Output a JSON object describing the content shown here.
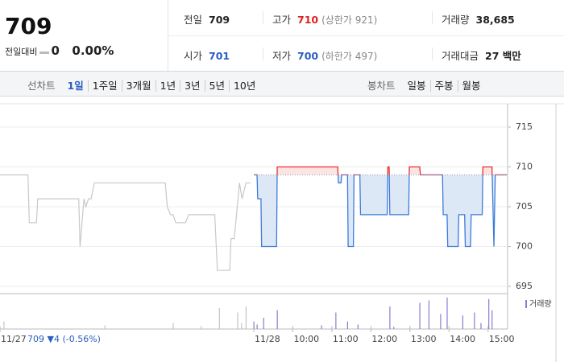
{
  "header": {
    "price": "709",
    "change_label": "전일대비",
    "change": "0",
    "change_pct": "0.00%",
    "info": [
      {
        "label": "전일",
        "value": "709"
      },
      {
        "label": "고가",
        "value": "710",
        "note": "(상한가 921)",
        "color": "#e02020"
      },
      {
        "label": "거래량",
        "value": "38,685"
      },
      {
        "label": "시가",
        "value": "701",
        "color": "#2a5fc1"
      },
      {
        "label": "저가",
        "value": "700",
        "note": "(하한가 497)",
        "color": "#2a5fc1"
      },
      {
        "label": "거래대금",
        "value": "27 백만"
      }
    ]
  },
  "tabs": {
    "line_label": "선차트",
    "line_periods": [
      "1일",
      "1주일",
      "3개월",
      "1년",
      "3년",
      "5년",
      "10년"
    ],
    "selected": 0,
    "candle_label": "봉차트",
    "candle_periods": [
      "일봉",
      "주봉",
      "월봉"
    ]
  },
  "chart_data": {
    "type": "line",
    "xlim": [
      -390,
      390
    ],
    "ylim": [
      695,
      715
    ],
    "yticks": [
      695,
      700,
      705,
      710,
      715
    ],
    "grid": true,
    "xticks": [
      {
        "value": -390,
        "label": "11/27"
      },
      {
        "value": 0,
        "label": "11/28"
      },
      {
        "value": 60,
        "label": "10:00"
      },
      {
        "value": 120,
        "label": "11:00"
      },
      {
        "value": 180,
        "label": "12:00"
      },
      {
        "value": 240,
        "label": "13:00"
      },
      {
        "value": 300,
        "label": "14:00"
      },
      {
        "value": 360,
        "label": "15:00"
      }
    ],
    "reference": 709,
    "footnote": "709 ▼4 (-0.56%)",
    "series": [
      {
        "color": "#c8c8c8",
        "x": [
          -390,
          -347,
          -345,
          -334,
          -332,
          -269,
          -267,
          -264,
          -261,
          -258,
          -254,
          -250,
          -245,
          -136,
          -133,
          -128,
          -124,
          -120,
          -105,
          -100,
          -60,
          -56,
          -37,
          -35,
          -30,
          -22,
          -18,
          -12,
          -5
        ],
        "values": [
          709,
          709,
          703,
          703,
          706,
          706,
          700,
          703,
          706,
          705,
          706,
          706,
          708,
          708,
          705,
          704,
          704,
          703,
          703,
          704,
          704,
          697,
          697,
          701,
          701,
          708,
          706,
          708,
          708
        ]
      },
      {
        "color": "#3d7bd9",
        "up_color": "#ee2b2b",
        "fill": "#dde8f6",
        "up_fill": "#fde4e4",
        "x": [
          0,
          5,
          6,
          11,
          12,
          35,
          36,
          129,
          130,
          134,
          135,
          144,
          145,
          153,
          154,
          163,
          164,
          205,
          206,
          208,
          209,
          238,
          239,
          255,
          256,
          290,
          291,
          297,
          298,
          314,
          315,
          324,
          325,
          333,
          334,
          351,
          352,
          366,
          369,
          371,
          374,
          389
        ],
        "values": [
          709,
          709,
          706,
          706,
          700,
          700,
          710,
          710,
          708,
          708,
          709,
          709,
          700,
          700,
          709,
          709,
          704,
          704,
          710,
          710,
          704,
          704,
          710,
          710,
          709,
          709,
          704,
          704,
          700,
          700,
          704,
          704,
          700,
          700,
          704,
          704,
          710,
          710,
          700,
          709,
          709,
          709
        ]
      }
    ],
    "volume": {
      "name": "거래량",
      "ylim": [
        0,
        45
      ],
      "series": [
        {
          "color": "#c4c4c4",
          "x": [
            -384,
            -229,
            -124,
            -81,
            -53,
            -25,
            -19,
            -12
          ],
          "values": [
            10,
            5,
            8,
            4,
            28,
            22,
            8,
            30
          ]
        },
        {
          "color": "#8f7ad0",
          "x": [
            0,
            5,
            15,
            36,
            104,
            126,
            144,
            160,
            209,
            215,
            255,
            269,
            287,
            297,
            321,
            339,
            349,
            361,
            366
          ],
          "values": [
            10,
            6,
            15,
            25,
            5,
            22,
            10,
            6,
            30,
            3,
            35,
            38,
            20,
            42,
            18,
            22,
            8,
            40,
            25
          ]
        }
      ]
    }
  }
}
